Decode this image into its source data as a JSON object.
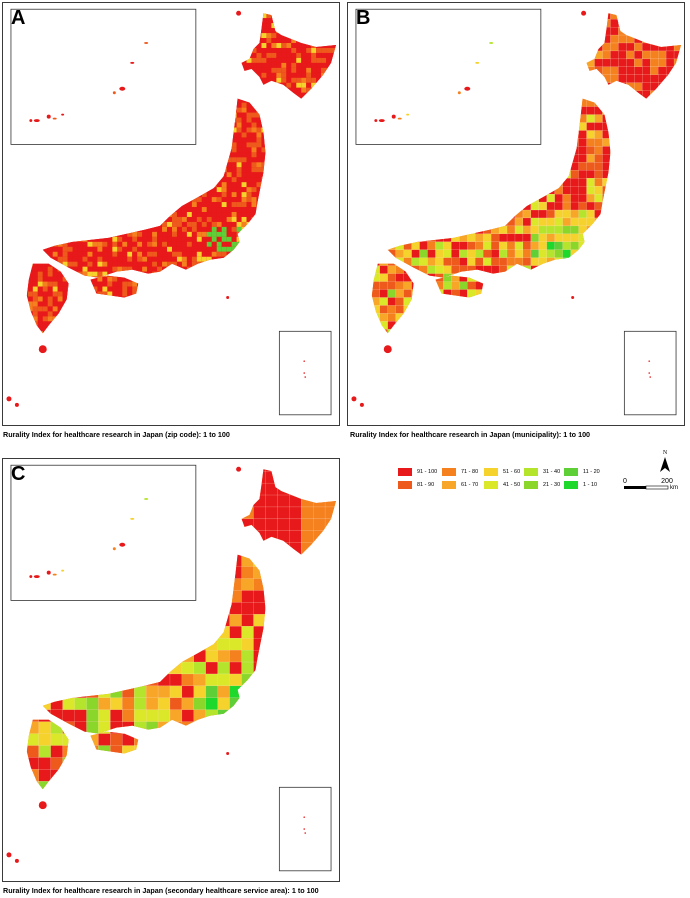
{
  "panels": {
    "a": {
      "label": "A",
      "caption": "Rurality Index for healthcare research in Japan (zip code): 1 to 100"
    },
    "b": {
      "label": "B",
      "caption": "Rurality Index for healthcare research in Japan (municipality): 1 to 100"
    },
    "c": {
      "label": "C",
      "caption": "Rurality Index for healthcare research in Japan (secondary healthcare service area): 1 to 100"
    }
  },
  "legend": [
    {
      "label": "91 - 100",
      "color": "#e8191a"
    },
    {
      "label": "81 - 90",
      "color": "#ee5a1c"
    },
    {
      "label": "71 - 80",
      "color": "#f5811e"
    },
    {
      "label": "61 - 70",
      "color": "#f8a628"
    },
    {
      "label": "51 - 60",
      "color": "#f6d22c"
    },
    {
      "label": "41 - 50",
      "color": "#dbe82a"
    },
    {
      "label": "31 - 40",
      "color": "#b4e52c"
    },
    {
      "label": "21 - 30",
      "color": "#8ad62a"
    },
    {
      "label": "11 - 20",
      "color": "#5ecf36"
    },
    {
      "label": "1 - 10",
      "color": "#1ed82c"
    }
  ],
  "scale_bar": {
    "north": "N",
    "start": "0",
    "end": "200",
    "unit": "km"
  }
}
